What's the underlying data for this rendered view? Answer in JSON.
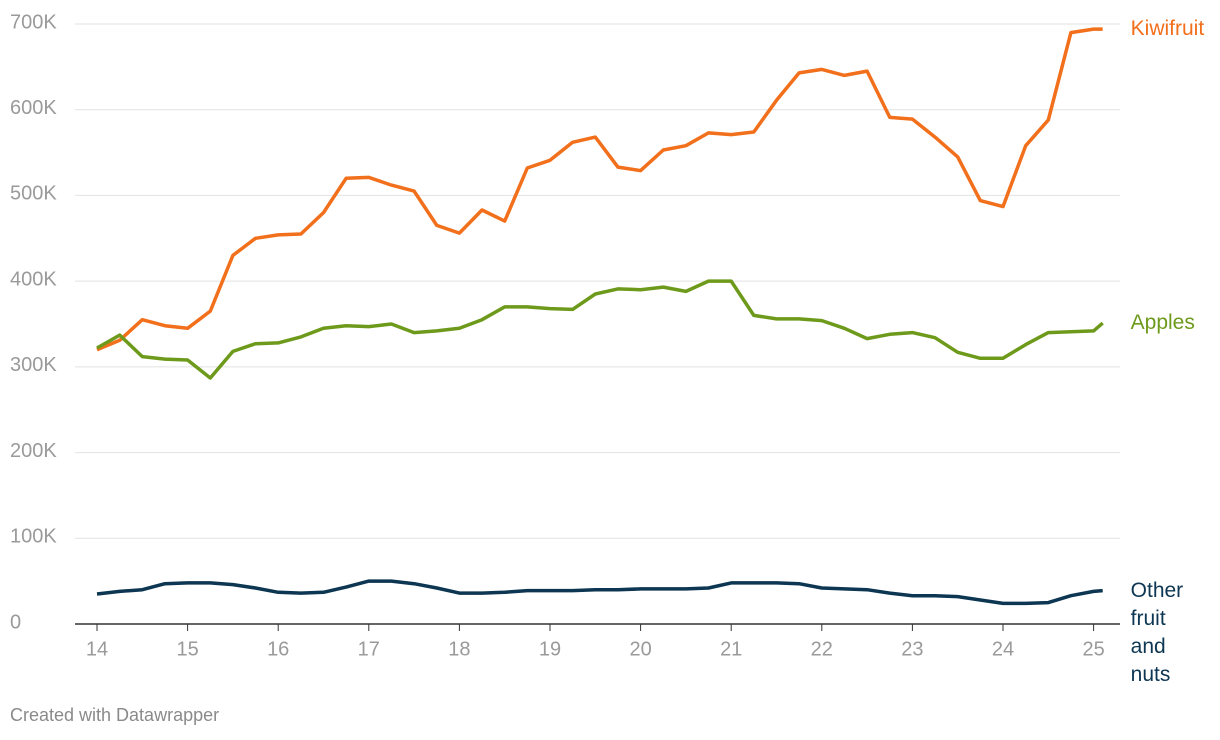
{
  "chart_data": {
    "type": "line",
    "note": "Created with Datawrapper",
    "x": [
      14,
      14.25,
      14.5,
      14.75,
      15,
      15.25,
      15.5,
      15.75,
      16,
      16.25,
      16.5,
      16.75,
      17,
      17.25,
      17.5,
      17.75,
      18,
      18.25,
      18.5,
      18.75,
      19,
      19.25,
      19.5,
      19.75,
      20,
      20.25,
      20.5,
      20.75,
      21,
      21.25,
      21.5,
      21.75,
      22,
      22.25,
      22.5,
      22.75,
      23,
      23.25,
      23.5,
      23.75,
      24,
      24.25,
      24.5,
      24.75,
      25,
      25.1
    ],
    "series": [
      {
        "name": "Kiwifruit",
        "color": "#f26f1b",
        "values": [
          320000,
          331000,
          355000,
          348000,
          345000,
          365000,
          430000,
          450000,
          454000,
          455000,
          480000,
          520000,
          521000,
          512000,
          505000,
          465000,
          456000,
          483000,
          470000,
          532000,
          541000,
          562000,
          568000,
          533000,
          529000,
          553000,
          558000,
          573000,
          571000,
          574000,
          611000,
          643000,
          647000,
          640000,
          645000,
          591000,
          589000,
          568000,
          545000,
          494000,
          487000,
          558000,
          588000,
          690000,
          694000,
          694000
        ]
      },
      {
        "name": "Apples",
        "color": "#6e9a1c",
        "values": [
          322000,
          337000,
          312000,
          309000,
          308000,
          287000,
          318000,
          327000,
          328000,
          335000,
          345000,
          348000,
          347000,
          350000,
          340000,
          342000,
          345000,
          355000,
          370000,
          370000,
          368000,
          367000,
          385000,
          391000,
          390000,
          393000,
          388000,
          400000,
          400000,
          360000,
          356000,
          356000,
          354000,
          345000,
          333000,
          338000,
          340000,
          334000,
          317000,
          310000,
          310000,
          326000,
          340000,
          341000,
          342000,
          351000
        ]
      },
      {
        "name": "Other fruit and nuts",
        "color": "#0c3652",
        "values": [
          35000,
          38000,
          40000,
          47000,
          48000,
          48000,
          46000,
          42000,
          37000,
          36000,
          37000,
          43000,
          50000,
          50000,
          47000,
          42000,
          36000,
          36000,
          37000,
          39000,
          39000,
          39000,
          40000,
          40000,
          41000,
          41000,
          41000,
          42000,
          48000,
          48000,
          48000,
          47000,
          42000,
          41000,
          40000,
          36000,
          33000,
          33000,
          32000,
          28000,
          24000,
          24000,
          25000,
          33000,
          38000,
          39000
        ]
      }
    ],
    "xlim": [
      14,
      25.1
    ],
    "xticks": [
      14,
      15,
      16,
      17,
      18,
      19,
      20,
      21,
      22,
      23,
      24,
      25
    ],
    "ylim": [
      0,
      700000
    ],
    "yticks": [
      0,
      {
        "value": 100000,
        "label": "100K"
      },
      {
        "value": 200000,
        "label": "200K"
      },
      {
        "value": 300000,
        "label": "300K"
      },
      {
        "value": 400000,
        "label": "400K"
      },
      {
        "value": 500000,
        "label": "500K"
      },
      {
        "value": 600000,
        "label": "600K"
      },
      {
        "value": 700000,
        "label": "700K"
      }
    ],
    "grid": true
  }
}
